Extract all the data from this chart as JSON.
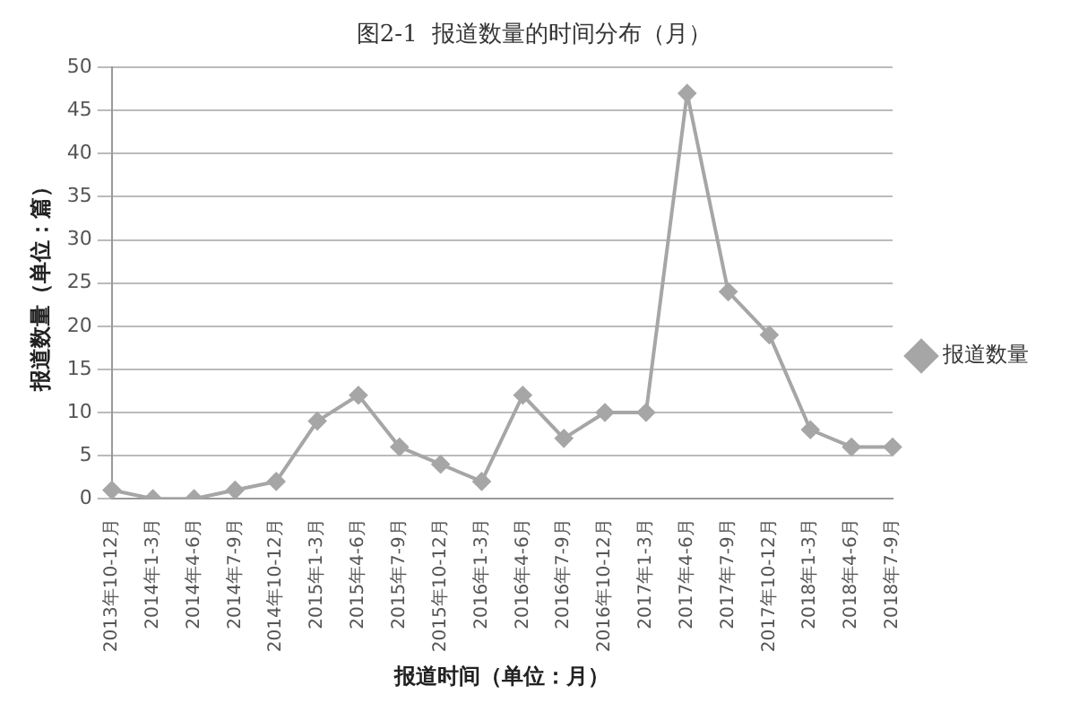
{
  "chart_data": {
    "type": "line",
    "title": "图2-1  报道数量的时间分布（月）",
    "xlabel": "报道时间（单位：月）",
    "ylabel": "报道数量（单位：篇）",
    "categories": [
      "2013年10-12月",
      "2014年1-3月",
      "2014年4-6月",
      "2014年7-9月",
      "2014年10-12月",
      "2015年1-3月",
      "2015年4-6月",
      "2015年7-9月",
      "2015年10-12月",
      "2016年1-3月",
      "2016年4-6月",
      "2016年7-9月",
      "2016年10-12月",
      "2017年1-3月",
      "2017年4-6月",
      "2017年7-9月",
      "2017年10-12月",
      "2018年1-3月",
      "2018年4-6月",
      "2018年7-9月"
    ],
    "series": [
      {
        "name": "报道数量",
        "color": "#a6a6a6",
        "values": [
          1,
          0,
          0,
          1,
          2,
          9,
          12,
          6,
          4,
          2,
          12,
          7,
          10,
          10,
          47,
          24,
          19,
          8,
          6,
          6
        ]
      }
    ],
    "ylim": [
      0,
      50
    ],
    "yticks": [
      0,
      5,
      10,
      15,
      20,
      25,
      30,
      35,
      40,
      45,
      50
    ],
    "grid": "y",
    "legend": "right",
    "marker": "diamond",
    "line_style": "solid"
  }
}
